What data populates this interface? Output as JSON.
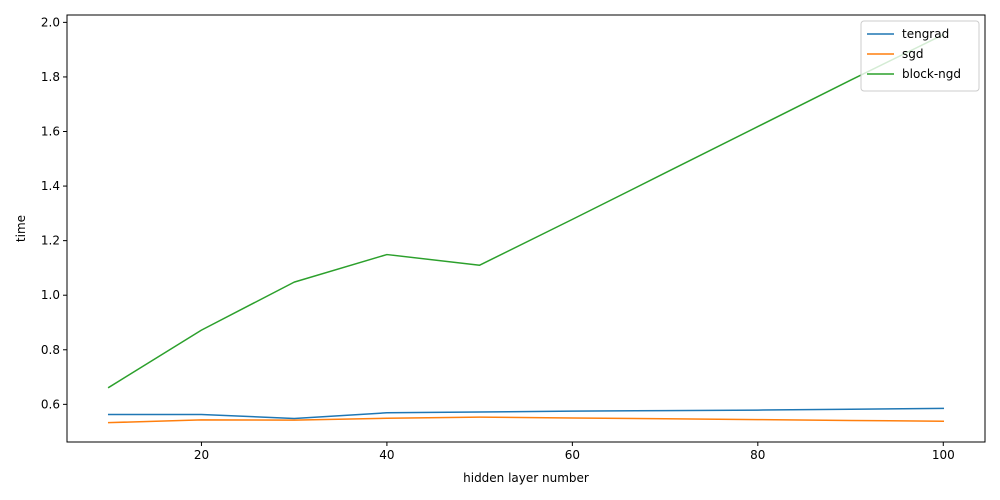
{
  "chart_data": {
    "type": "line",
    "title": "",
    "xlabel": "hidden layer number",
    "ylabel": "time",
    "x": [
      10,
      20,
      30,
      40,
      50,
      60,
      70,
      80,
      90,
      100
    ],
    "series": [
      {
        "name": "tengrad",
        "color": "#1f77b4",
        "values": [
          0.563,
          0.563,
          0.548,
          0.569,
          0.572,
          0.575,
          0.577,
          0.579,
          0.582,
          0.585
        ]
      },
      {
        "name": "sgd",
        "color": "#ff7f0e",
        "values": [
          0.533,
          0.543,
          0.542,
          0.549,
          0.553,
          0.55,
          0.547,
          0.544,
          0.541,
          0.538
        ]
      },
      {
        "name": "block-ngd",
        "color": "#2ca02c",
        "values": [
          0.662,
          0.872,
          1.048,
          1.149,
          1.11,
          1.278,
          1.448,
          1.618,
          1.788,
          1.955
        ]
      }
    ],
    "xlim": [
      5.5,
      104.5
    ],
    "ylim": [
      0.462,
      2.027
    ],
    "xticks": [
      20,
      40,
      60,
      80,
      100
    ],
    "yticks": [
      0.6,
      0.8,
      1.0,
      1.2,
      1.4,
      1.6,
      1.8,
      2.0
    ],
    "ytick_labels": [
      "0.6",
      "0.8",
      "1.0",
      "1.2",
      "1.4",
      "1.6",
      "1.8",
      "2.0"
    ],
    "grid": false,
    "legend_position": "top-right"
  }
}
